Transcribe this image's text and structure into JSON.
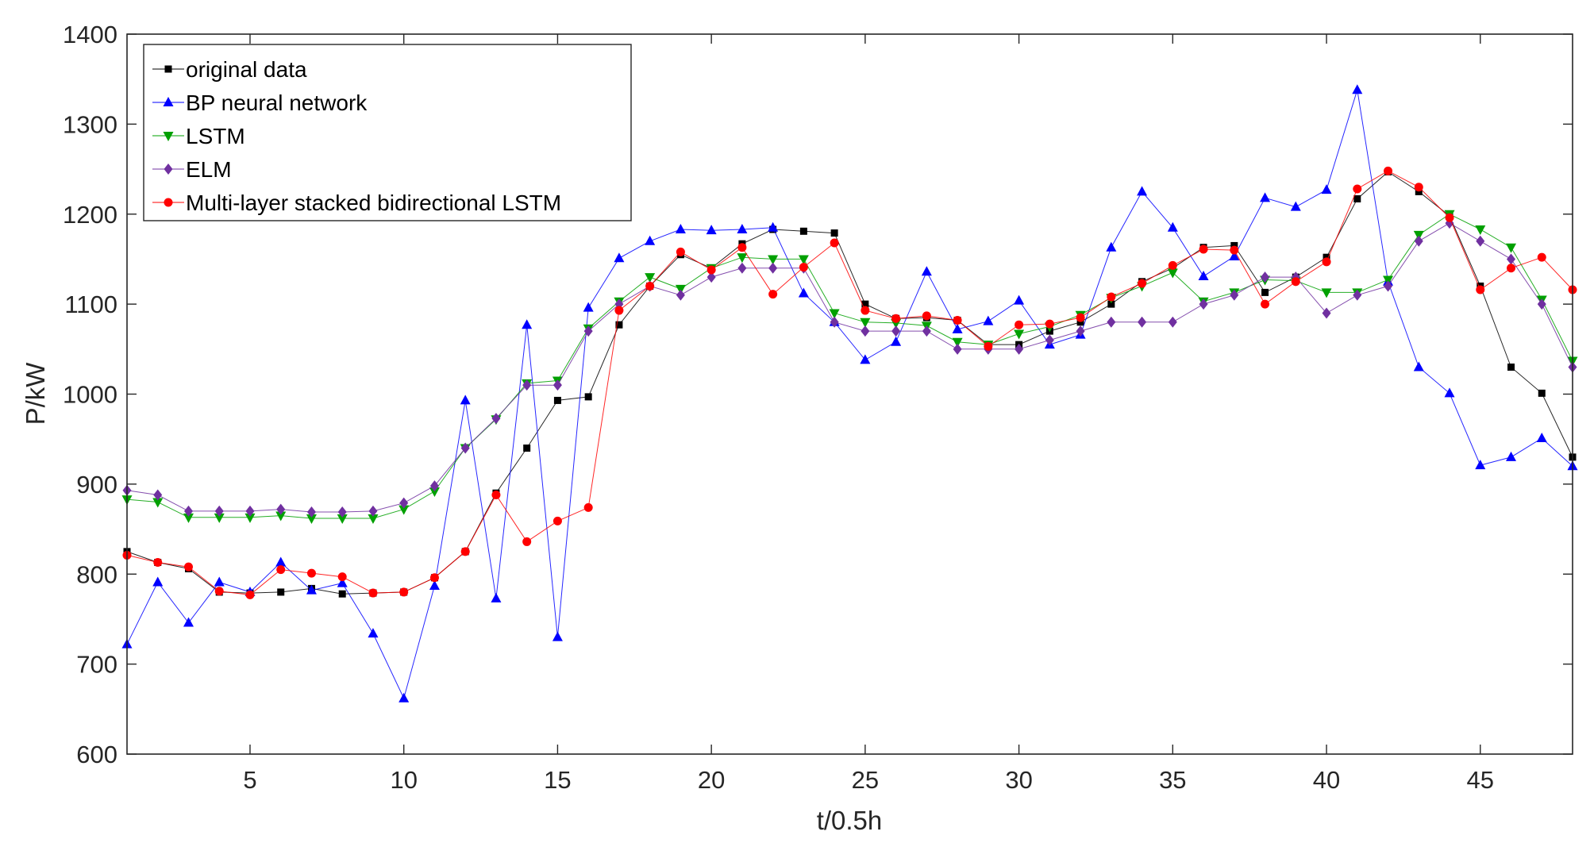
{
  "chart_data": {
    "type": "line",
    "title": "",
    "xlabel": "t/0.5h",
    "ylabel": "P/kW",
    "xlim": [
      1,
      48
    ],
    "ylim": [
      600,
      1400
    ],
    "xticks": [
      5,
      10,
      15,
      20,
      25,
      30,
      35,
      40,
      45
    ],
    "yticks": [
      600,
      700,
      800,
      900,
      1000,
      1100,
      1200,
      1300,
      1400
    ],
    "grid": false,
    "legend_position": "top-left",
    "x": [
      1,
      2,
      3,
      4,
      5,
      6,
      7,
      8,
      9,
      10,
      11,
      12,
      13,
      14,
      15,
      16,
      17,
      18,
      19,
      20,
      21,
      22,
      23,
      24,
      25,
      26,
      27,
      28,
      29,
      30,
      31,
      32,
      33,
      34,
      35,
      36,
      37,
      38,
      39,
      40,
      41,
      42,
      43,
      44,
      45,
      46,
      47,
      48
    ],
    "series": [
      {
        "name": "original data",
        "color": "#000000",
        "marker": "square",
        "values": [
          825,
          813,
          806,
          780,
          779,
          780,
          784,
          778,
          779,
          780,
          796,
          825,
          890,
          940,
          993,
          997,
          1077,
          1120,
          1155,
          1140,
          1167,
          1183,
          1181,
          1179,
          1100,
          1084,
          1085,
          1082,
          1055,
          1055,
          1070,
          1080,
          1100,
          1125,
          1140,
          1163,
          1165,
          1113,
          1130,
          1152,
          1217,
          1247,
          1225,
          1198,
          1120,
          1030,
          1001,
          930
        ]
      },
      {
        "name": "BP neural network",
        "color": "#0000ff",
        "marker": "triangle-up",
        "values": [
          722,
          791,
          746,
          791,
          780,
          813,
          782,
          790,
          734,
          662,
          787,
          993,
          773,
          1077,
          730,
          1096,
          1151,
          1170,
          1183,
          1182,
          1183,
          1185,
          1112,
          1080,
          1038,
          1058,
          1136,
          1072,
          1081,
          1104,
          1055,
          1066,
          1163,
          1225,
          1185,
          1131,
          1153,
          1218,
          1208,
          1227,
          1338,
          1125,
          1030,
          1001,
          921,
          930,
          951,
          920
        ]
      },
      {
        "name": "LSTM",
        "color": "#00a000",
        "marker": "triangle-down",
        "values": [
          883,
          880,
          863,
          863,
          863,
          865,
          862,
          862,
          862,
          872,
          892,
          940,
          972,
          1012,
          1015,
          1073,
          1103,
          1130,
          1117,
          1140,
          1152,
          1150,
          1150,
          1090,
          1080,
          1079,
          1076,
          1058,
          1055,
          1067,
          1075,
          1088,
          1107,
          1120,
          1135,
          1103,
          1113,
          1127,
          1126,
          1113,
          1113,
          1127,
          1177,
          1200,
          1183,
          1163,
          1105,
          1037
        ]
      },
      {
        "name": "ELM",
        "color": "#7030a0",
        "marker": "diamond",
        "values": [
          893,
          888,
          870,
          870,
          870,
          872,
          869,
          869,
          870,
          879,
          898,
          940,
          973,
          1010,
          1010,
          1070,
          1100,
          1120,
          1110,
          1130,
          1140,
          1140,
          1140,
          1080,
          1070,
          1070,
          1070,
          1050,
          1050,
          1050,
          1060,
          1070,
          1080,
          1080,
          1080,
          1100,
          1110,
          1130,
          1130,
          1090,
          1110,
          1120,
          1170,
          1190,
          1170,
          1150,
          1100,
          1030
        ]
      },
      {
        "name": "Multi-layer stacked bidirectional LSTM",
        "color": "#ff0000",
        "marker": "circle",
        "values": [
          821,
          813,
          808,
          781,
          777,
          805,
          801,
          797,
          779,
          780,
          796,
          825,
          888,
          836,
          859,
          874,
          1093,
          1120,
          1158,
          1138,
          1163,
          1111,
          1141,
          1168,
          1093,
          1084,
          1087,
          1082,
          1053,
          1077,
          1078,
          1085,
          1108,
          1123,
          1143,
          1161,
          1160,
          1100,
          1125,
          1147,
          1228,
          1248,
          1230,
          1196,
          1116,
          1140,
          1152,
          1116
        ]
      }
    ]
  }
}
